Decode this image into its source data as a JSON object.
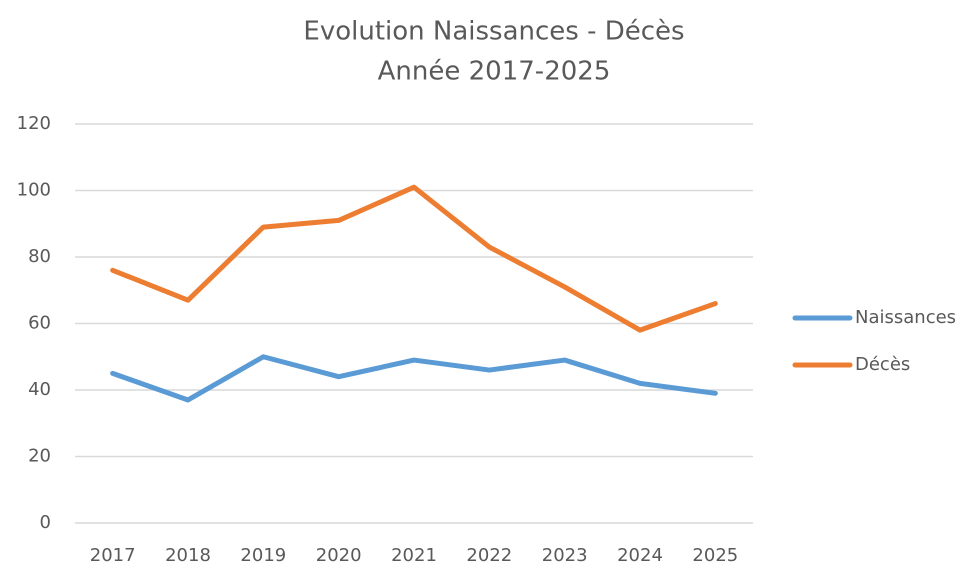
{
  "chart_data": {
    "type": "line",
    "title": "Evolution Naissances - Décès",
    "subtitle": "Année 2017-2025",
    "categories": [
      "2017",
      "2018",
      "2019",
      "2020",
      "2021",
      "2022",
      "2023",
      "2024",
      "2025"
    ],
    "series": [
      {
        "name": "Naissances",
        "color": "#5b9bd5",
        "values": [
          45,
          37,
          50,
          44,
          49,
          46,
          49,
          42,
          39
        ]
      },
      {
        "name": "Décès",
        "color": "#ed7d31",
        "values": [
          76,
          67,
          89,
          91,
          101,
          83,
          71,
          58,
          66
        ]
      }
    ],
    "ylim": [
      0,
      120
    ],
    "yticks": [
      0,
      20,
      40,
      60,
      80,
      100,
      120
    ],
    "grid": true,
    "legend": "right"
  }
}
